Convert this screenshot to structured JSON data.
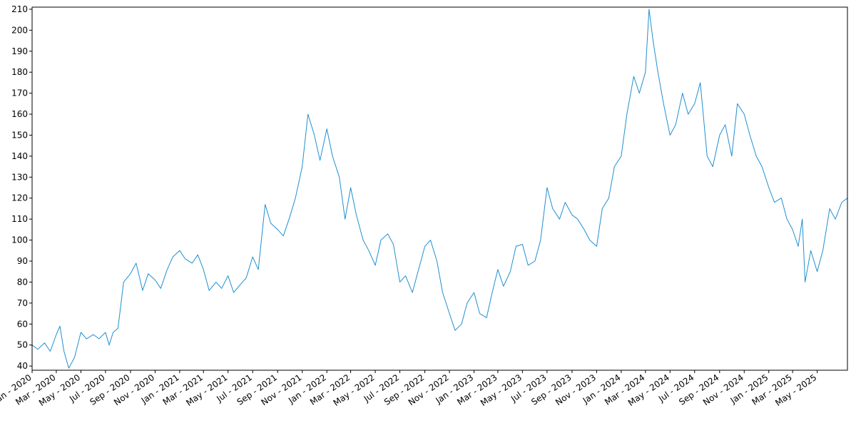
{
  "colors": {
    "line": "#1f8fd0",
    "axis": "#000000",
    "background": "#ffffff"
  },
  "chart_data": {
    "type": "line",
    "title": "",
    "xlabel": "",
    "ylabel": "",
    "grid": false,
    "legend": "none",
    "xlim": [
      "2020-01-01",
      "2025-07-15"
    ],
    "ylim": [
      38,
      211
    ],
    "y_ticks": [
      40,
      50,
      60,
      70,
      80,
      90,
      100,
      110,
      120,
      130,
      140,
      150,
      160,
      170,
      180,
      190,
      200,
      210
    ],
    "x_ticks": [
      {
        "date": "2020-01-01",
        "label": "Jan - 2020"
      },
      {
        "date": "2020-03-01",
        "label": "Mar - 2020"
      },
      {
        "date": "2020-05-01",
        "label": "May - 2020"
      },
      {
        "date": "2020-07-01",
        "label": "Jul - 2020"
      },
      {
        "date": "2020-09-01",
        "label": "Sep - 2020"
      },
      {
        "date": "2020-11-01",
        "label": "Nov - 2020"
      },
      {
        "date": "2021-01-01",
        "label": "Jan - 2021"
      },
      {
        "date": "2021-03-01",
        "label": "Mar - 2021"
      },
      {
        "date": "2021-05-01",
        "label": "May - 2021"
      },
      {
        "date": "2021-07-01",
        "label": "Jul - 2021"
      },
      {
        "date": "2021-09-01",
        "label": "Sep - 2021"
      },
      {
        "date": "2021-11-01",
        "label": "Nov - 2021"
      },
      {
        "date": "2022-01-01",
        "label": "Jan - 2022"
      },
      {
        "date": "2022-03-01",
        "label": "Mar - 2022"
      },
      {
        "date": "2022-05-01",
        "label": "May - 2022"
      },
      {
        "date": "2022-07-01",
        "label": "Jul - 2022"
      },
      {
        "date": "2022-09-01",
        "label": "Sep - 2022"
      },
      {
        "date": "2022-11-01",
        "label": "Nov - 2022"
      },
      {
        "date": "2023-01-01",
        "label": "Jan - 2023"
      },
      {
        "date": "2023-03-01",
        "label": "Mar - 2023"
      },
      {
        "date": "2023-05-01",
        "label": "May - 2023"
      },
      {
        "date": "2023-07-01",
        "label": "Jul - 2023"
      },
      {
        "date": "2023-09-01",
        "label": "Sep - 2023"
      },
      {
        "date": "2023-11-01",
        "label": "Nov - 2023"
      },
      {
        "date": "2024-01-01",
        "label": "Jan - 2024"
      },
      {
        "date": "2024-03-01",
        "label": "Mar - 2024"
      },
      {
        "date": "2024-05-01",
        "label": "May - 2024"
      },
      {
        "date": "2024-07-01",
        "label": "Jul - 2024"
      },
      {
        "date": "2024-09-01",
        "label": "Sep - 2024"
      },
      {
        "date": "2024-11-01",
        "label": "Nov - 2024"
      },
      {
        "date": "2025-01-01",
        "label": "Jan - 2025"
      },
      {
        "date": "2025-03-01",
        "label": "Mar - 2025"
      },
      {
        "date": "2025-05-01",
        "label": "May - 2025"
      }
    ],
    "series": [
      {
        "x": [
          "2020-01-01",
          "2020-01-15",
          "2020-02-01",
          "2020-02-15",
          "2020-03-01",
          "2020-03-10",
          "2020-03-20",
          "2020-04-01",
          "2020-04-15",
          "2020-05-01",
          "2020-05-15",
          "2020-06-01",
          "2020-06-15",
          "2020-07-01",
          "2020-07-10",
          "2020-07-20",
          "2020-08-01",
          "2020-08-15",
          "2020-09-01",
          "2020-09-15",
          "2020-10-01",
          "2020-10-15",
          "2020-11-01",
          "2020-11-15",
          "2020-12-01",
          "2020-12-15",
          "2021-01-01",
          "2021-01-15",
          "2021-02-01",
          "2021-02-15",
          "2021-03-01",
          "2021-03-15",
          "2021-04-01",
          "2021-04-15",
          "2021-05-01",
          "2021-05-15",
          "2021-06-01",
          "2021-06-15",
          "2021-07-01",
          "2021-07-15",
          "2021-08-01",
          "2021-08-15",
          "2021-09-01",
          "2021-09-15",
          "2021-10-01",
          "2021-10-15",
          "2021-11-01",
          "2021-11-15",
          "2021-12-01",
          "2021-12-15",
          "2022-01-01",
          "2022-01-15",
          "2022-02-01",
          "2022-02-15",
          "2022-03-01",
          "2022-03-15",
          "2022-04-01",
          "2022-04-15",
          "2022-05-01",
          "2022-05-15",
          "2022-06-01",
          "2022-06-15",
          "2022-07-01",
          "2022-07-15",
          "2022-08-01",
          "2022-08-15",
          "2022-09-01",
          "2022-09-15",
          "2022-10-01",
          "2022-10-15",
          "2022-11-01",
          "2022-11-15",
          "2022-12-01",
          "2022-12-15",
          "2023-01-01",
          "2023-01-15",
          "2023-02-01",
          "2023-02-15",
          "2023-03-01",
          "2023-03-15",
          "2023-04-01",
          "2023-04-15",
          "2023-05-01",
          "2023-05-15",
          "2023-06-01",
          "2023-06-15",
          "2023-07-01",
          "2023-07-15",
          "2023-08-01",
          "2023-08-15",
          "2023-09-01",
          "2023-09-15",
          "2023-10-01",
          "2023-10-15",
          "2023-11-01",
          "2023-11-15",
          "2023-12-01",
          "2023-12-15",
          "2024-01-01",
          "2024-01-15",
          "2024-02-01",
          "2024-02-15",
          "2024-03-01",
          "2024-03-10",
          "2024-03-20",
          "2024-04-01",
          "2024-04-15",
          "2024-05-01",
          "2024-05-15",
          "2024-06-01",
          "2024-06-15",
          "2024-07-01",
          "2024-07-15",
          "2024-08-01",
          "2024-08-15",
          "2024-09-01",
          "2024-09-15",
          "2024-10-01",
          "2024-10-15",
          "2024-11-01",
          "2024-11-15",
          "2024-12-01",
          "2024-12-15",
          "2025-01-01",
          "2025-01-15",
          "2025-02-01",
          "2025-02-15",
          "2025-03-01",
          "2025-03-15",
          "2025-03-25",
          "2025-04-01",
          "2025-04-15",
          "2025-05-01",
          "2025-05-15",
          "2025-06-01",
          "2025-06-15",
          "2025-07-01",
          "2025-07-15"
        ],
        "y": [
          50,
          48,
          51,
          47,
          55,
          59,
          47,
          39,
          44,
          56,
          53,
          55,
          53,
          56,
          50,
          56,
          58,
          80,
          84,
          89,
          76,
          84,
          81,
          77,
          86,
          92,
          95,
          91,
          89,
          93,
          86,
          76,
          80,
          77,
          83,
          75,
          79,
          82,
          92,
          86,
          117,
          108,
          105,
          102,
          111,
          120,
          135,
          160,
          150,
          138,
          153,
          140,
          130,
          110,
          125,
          112,
          100,
          95,
          88,
          100,
          103,
          98,
          80,
          83,
          75,
          85,
          97,
          100,
          90,
          75,
          65,
          57,
          60,
          70,
          75,
          65,
          63,
          75,
          86,
          78,
          85,
          97,
          98,
          88,
          90,
          100,
          125,
          115,
          110,
          118,
          112,
          110,
          105,
          100,
          97,
          115,
          120,
          135,
          140,
          160,
          178,
          170,
          180,
          210,
          195,
          180,
          165,
          150,
          155,
          170,
          160,
          165,
          175,
          140,
          135,
          150,
          155,
          140,
          165,
          160,
          150,
          140,
          135,
          125,
          118,
          120,
          110,
          105,
          97,
          110,
          80,
          95,
          85,
          95,
          115,
          110,
          118,
          120
        ]
      }
    ]
  }
}
